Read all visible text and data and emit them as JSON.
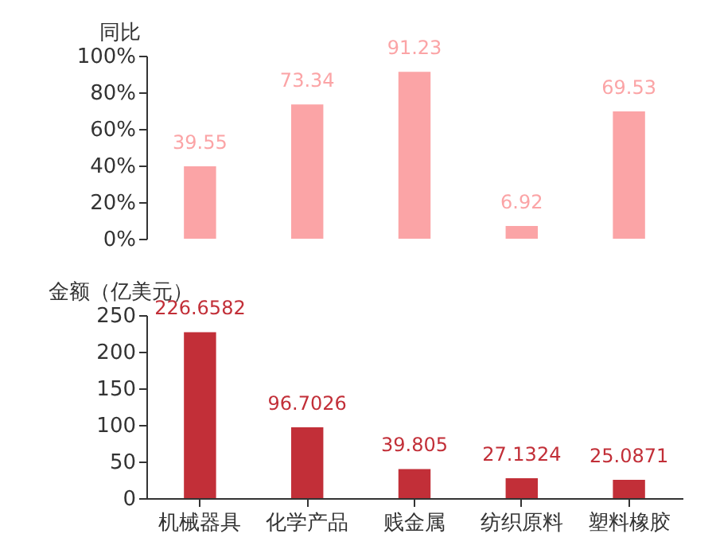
{
  "chart_data": [
    {
      "type": "bar",
      "ylabel": "同比",
      "categories": [
        null,
        null,
        null,
        null,
        null
      ],
      "values": [
        39.55,
        73.34,
        91.23,
        6.92,
        69.53
      ],
      "color": "#fba4a6",
      "data_labels": true,
      "ylim": [
        0,
        100
      ],
      "yticks": [
        {
          "value": 0,
          "label": "0%"
        },
        {
          "value": 20,
          "label": "20%"
        },
        {
          "value": 40,
          "label": "40%"
        },
        {
          "value": 60,
          "label": "60%"
        },
        {
          "value": 80,
          "label": "80%"
        },
        {
          "value": 100,
          "label": "100%"
        }
      ],
      "tick_labels": "y",
      "grid": false
    },
    {
      "type": "bar",
      "ylabel": "金额（亿美元）",
      "categories": [
        "机械器具",
        "化学产品",
        "贱金属",
        "纺织原料",
        "塑料橡胶"
      ],
      "values": [
        226.6582,
        96.7026,
        39.805,
        27.1324,
        25.0871
      ],
      "color": "#c22f38",
      "data_labels": true,
      "ylim": [
        0,
        250
      ],
      "yticks": [
        0,
        50,
        100,
        150,
        200,
        250
      ],
      "grid": false
    }
  ]
}
